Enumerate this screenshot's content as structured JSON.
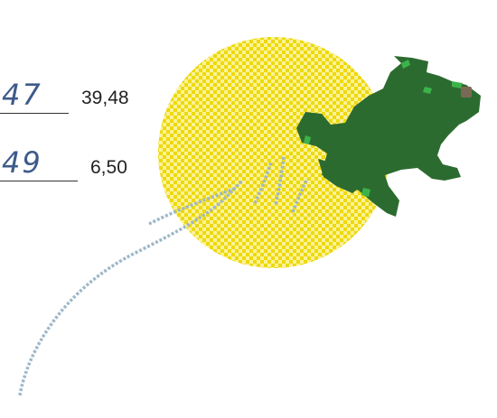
{
  "rows": [
    {
      "handwritten": "47",
      "value": "39,48"
    },
    {
      "handwritten": "49",
      "value": "6,50"
    }
  ],
  "colors": {
    "sun": "#f5e21a",
    "sun_dark": "#e9d200",
    "frog": "#2c6b2f",
    "frog_highlight": "#3cb34a",
    "eye": "#7a6a55",
    "trail": "#9fb8c8",
    "ink": "#3d5a8a"
  },
  "icons": {
    "illustration": "frog-jumping-icon"
  }
}
